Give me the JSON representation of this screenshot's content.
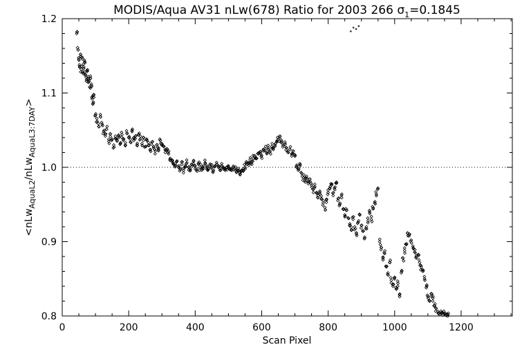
{
  "chart_data": {
    "type": "scatter",
    "title": {
      "main": "MODIS/Aqua AV31 nLw(678) Ratio for 2003 266 ",
      "sigma": "σ",
      "sigma_sub": "1",
      "sigma_value": "=0.1845"
    },
    "xlabel": "Scan Pixel",
    "ylabel": {
      "open": "<nLw",
      "sub1": "AquaL2",
      "mid": "/nLw",
      "sub2": "AquaL3:7DAY",
      "close": ">"
    },
    "xlim": [
      0,
      1354
    ],
    "ylim": [
      0.8,
      1.2
    ],
    "x_ticks": [
      0,
      200,
      400,
      600,
      800,
      1000,
      1200
    ],
    "x_tick_labels": [
      "0",
      "200",
      "400",
      "600",
      "800",
      "1000",
      "1200"
    ],
    "y_ticks": [
      0.8,
      0.9,
      1.0,
      1.1,
      1.2
    ],
    "y_tick_labels": [
      "0.8",
      "0.9",
      "1.0",
      "1.1",
      "1.2"
    ],
    "reference_line": {
      "y": 1.0,
      "style": "dotted"
    },
    "marker": "diamond",
    "grid": false,
    "series_points": [
      [
        45,
        1.182
      ],
      [
        48,
        1.158
      ],
      [
        50,
        1.145
      ],
      [
        52,
        1.138
      ],
      [
        55,
        1.152
      ],
      [
        57,
        1.132
      ],
      [
        60,
        1.148
      ],
      [
        62,
        1.128
      ],
      [
        65,
        1.135
      ],
      [
        68,
        1.142
      ],
      [
        70,
        1.125
      ],
      [
        73,
        1.118
      ],
      [
        75,
        1.13
      ],
      [
        78,
        1.122
      ],
      [
        80,
        1.115
      ],
      [
        83,
        1.108
      ],
      [
        85,
        1.12
      ],
      [
        88,
        1.112
      ],
      [
        90,
        1.092
      ],
      [
        92,
        1.085
      ],
      [
        95,
        1.098
      ],
      [
        100,
        1.07
      ],
      [
        105,
        1.062
      ],
      [
        110,
        1.055
      ],
      [
        115,
        1.068
      ],
      [
        120,
        1.058
      ],
      [
        125,
        1.048
      ],
      [
        130,
        1.042
      ],
      [
        135,
        1.055
      ],
      [
        140,
        1.035
      ],
      [
        145,
        1.045
      ],
      [
        150,
        1.038
      ],
      [
        155,
        1.03
      ],
      [
        160,
        1.042
      ],
      [
        165,
        1.036
      ],
      [
        170,
        1.04
      ],
      [
        175,
        1.032
      ],
      [
        180,
        1.044
      ],
      [
        185,
        1.038
      ],
      [
        190,
        1.03
      ],
      [
        195,
        1.046
      ],
      [
        200,
        1.04
      ],
      [
        205,
        1.034
      ],
      [
        210,
        1.048
      ],
      [
        215,
        1.036
      ],
      [
        220,
        1.042
      ],
      [
        225,
        1.03
      ],
      [
        230,
        1.044
      ],
      [
        235,
        1.038
      ],
      [
        240,
        1.032
      ],
      [
        245,
        1.04
      ],
      [
        250,
        1.028
      ],
      [
        255,
        1.036
      ],
      [
        260,
        1.03
      ],
      [
        265,
        1.024
      ],
      [
        270,
        1.034
      ],
      [
        275,
        1.028
      ],
      [
        280,
        1.022
      ],
      [
        285,
        1.03
      ],
      [
        290,
        1.026
      ],
      [
        295,
        1.036
      ],
      [
        300,
        1.032
      ],
      [
        305,
        1.028
      ],
      [
        310,
        1.02
      ],
      [
        315,
        1.025
      ],
      [
        320,
        1.018
      ],
      [
        325,
        1.012
      ],
      [
        330,
        1.008
      ],
      [
        335,
        1.004
      ],
      [
        340,
        1.002
      ],
      [
        345,
        1.008
      ],
      [
        350,
        1.0
      ],
      [
        355,
        0.998
      ],
      [
        360,
        1.004
      ],
      [
        365,
        0.996
      ],
      [
        370,
        1.002
      ],
      [
        375,
        1.006
      ],
      [
        380,
        1.0
      ],
      [
        385,
        0.998
      ],
      [
        390,
        1.004
      ],
      [
        395,
        1.008
      ],
      [
        400,
        1.002
      ],
      [
        405,
        0.998
      ],
      [
        410,
        1.004
      ],
      [
        415,
        1.0
      ],
      [
        420,
        0.996
      ],
      [
        425,
        1.002
      ],
      [
        430,
        1.006
      ],
      [
        435,
        1.0
      ],
      [
        440,
        0.998
      ],
      [
        445,
        1.004
      ],
      [
        450,
        1.0
      ],
      [
        455,
        0.996
      ],
      [
        460,
        1.002
      ],
      [
        465,
        1.004
      ],
      [
        470,
        1.0
      ],
      [
        475,
        0.998
      ],
      [
        480,
        1.002
      ],
      [
        485,
        1.0
      ],
      [
        490,
        0.996
      ],
      [
        495,
        1.0
      ],
      [
        500,
        1.002
      ],
      [
        505,
        0.998
      ],
      [
        510,
        0.996
      ],
      [
        515,
        1.0
      ],
      [
        520,
        0.998
      ],
      [
        525,
        0.994
      ],
      [
        530,
        0.996
      ],
      [
        535,
        0.99
      ],
      [
        540,
        0.995
      ],
      [
        545,
        0.998
      ],
      [
        550,
        1.0
      ],
      [
        555,
        1.004
      ],
      [
        560,
        1.006
      ],
      [
        565,
        1.01
      ],
      [
        570,
        1.008
      ],
      [
        575,
        1.012
      ],
      [
        580,
        1.015
      ],
      [
        585,
        1.012
      ],
      [
        590,
        1.018
      ],
      [
        595,
        1.02
      ],
      [
        600,
        1.016
      ],
      [
        605,
        1.022
      ],
      [
        610,
        1.025
      ],
      [
        615,
        1.02
      ],
      [
        620,
        1.026
      ],
      [
        625,
        1.022
      ],
      [
        630,
        1.028
      ],
      [
        635,
        1.024
      ],
      [
        640,
        1.03
      ],
      [
        645,
        1.034
      ],
      [
        650,
        1.038
      ],
      [
        655,
        1.042
      ],
      [
        660,
        1.036
      ],
      [
        665,
        1.03
      ],
      [
        670,
        1.034
      ],
      [
        675,
        1.026
      ],
      [
        680,
        1.02
      ],
      [
        685,
        1.024
      ],
      [
        690,
        1.018
      ],
      [
        695,
        1.022
      ],
      [
        700,
        1.015
      ],
      [
        705,
        1.0
      ],
      [
        710,
        0.996
      ],
      [
        715,
        1.002
      ],
      [
        720,
        0.992
      ],
      [
        725,
        0.986
      ],
      [
        730,
        0.982
      ],
      [
        735,
        0.988
      ],
      [
        740,
        0.978
      ],
      [
        745,
        0.984
      ],
      [
        750,
        0.976
      ],
      [
        755,
        0.97
      ],
      [
        760,
        0.974
      ],
      [
        765,
        0.966
      ],
      [
        770,
        0.962
      ],
      [
        775,
        0.968
      ],
      [
        780,
        0.958
      ],
      [
        785,
        0.952
      ],
      [
        790,
        0.946
      ],
      [
        795,
        0.956
      ],
      [
        800,
        0.966
      ],
      [
        805,
        0.972
      ],
      [
        810,
        0.976
      ],
      [
        815,
        0.962
      ],
      [
        820,
        0.97
      ],
      [
        825,
        0.98
      ],
      [
        830,
        0.958
      ],
      [
        835,
        0.95
      ],
      [
        840,
        0.962
      ],
      [
        845,
        0.944
      ],
      [
        850,
        0.936
      ],
      [
        855,
        0.942
      ],
      [
        860,
        0.932
      ],
      [
        865,
        0.924
      ],
      [
        870,
        0.916
      ],
      [
        875,
        0.93
      ],
      [
        880,
        0.92
      ],
      [
        885,
        0.912
      ],
      [
        890,
        0.926
      ],
      [
        895,
        0.936
      ],
      [
        900,
        0.922
      ],
      [
        905,
        0.914
      ],
      [
        910,
        0.906
      ],
      [
        915,
        0.92
      ],
      [
        920,
        0.928
      ],
      [
        925,
        0.938
      ],
      [
        930,
        0.93
      ],
      [
        935,
        0.944
      ],
      [
        940,
        0.952
      ],
      [
        945,
        0.964
      ],
      [
        950,
        0.972
      ],
      [
        955,
        0.9
      ],
      [
        960,
        0.892
      ],
      [
        965,
        0.878
      ],
      [
        970,
        0.884
      ],
      [
        975,
        0.866
      ],
      [
        980,
        0.858
      ],
      [
        985,
        0.872
      ],
      [
        990,
        0.848
      ],
      [
        995,
        0.84
      ],
      [
        1000,
        0.852
      ],
      [
        1005,
        0.836
      ],
      [
        1010,
        0.844
      ],
      [
        1015,
        0.826
      ],
      [
        1020,
        0.858
      ],
      [
        1025,
        0.878
      ],
      [
        1030,
        0.888
      ],
      [
        1035,
        0.896
      ],
      [
        1040,
        0.908
      ],
      [
        1045,
        0.91
      ],
      [
        1050,
        0.902
      ],
      [
        1055,
        0.894
      ],
      [
        1060,
        0.886
      ],
      [
        1065,
        0.878
      ],
      [
        1070,
        0.882
      ],
      [
        1075,
        0.872
      ],
      [
        1080,
        0.866
      ],
      [
        1085,
        0.86
      ],
      [
        1090,
        0.85
      ],
      [
        1095,
        0.838
      ],
      [
        1100,
        0.826
      ],
      [
        1105,
        0.82
      ],
      [
        1110,
        0.83
      ],
      [
        1115,
        0.824
      ],
      [
        1120,
        0.814
      ],
      [
        1125,
        0.81
      ],
      [
        1130,
        0.806
      ],
      [
        1135,
        0.802
      ],
      [
        1140,
        0.804
      ],
      [
        1145,
        0.801
      ],
      [
        1150,
        0.8035
      ],
      [
        1155,
        0.8005
      ],
      [
        1160,
        0.802
      ],
      [
        868,
        1.183
      ],
      [
        876,
        1.188
      ],
      [
        884,
        1.186
      ],
      [
        892,
        1.19
      ]
    ]
  }
}
